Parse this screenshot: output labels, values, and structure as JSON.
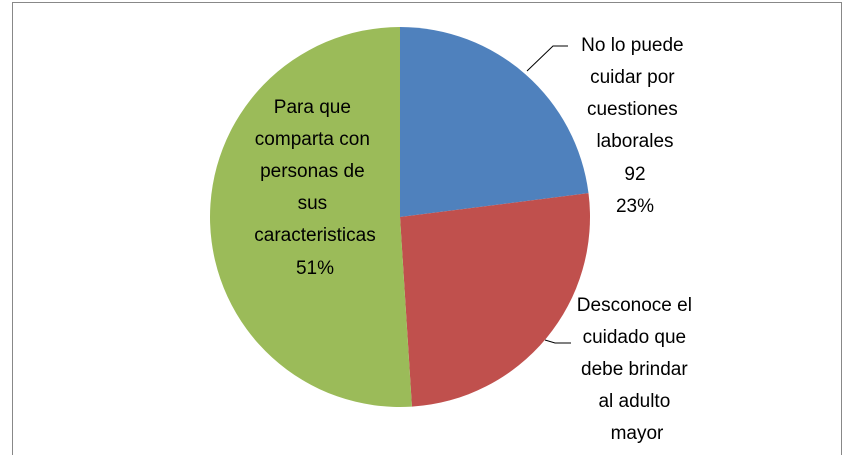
{
  "chart_data": {
    "type": "pie",
    "categories": [
      "No lo puede cuidar por cuestiones laborales",
      "Desconoce el cuidado que debe brindar al adulto mayor",
      "Para que comparta con personas de sus caracteristicas"
    ],
    "values": [
      23,
      26,
      51
    ],
    "counts": [
      92,
      null,
      null
    ],
    "value_labels": [
      "23%",
      null,
      "51%"
    ],
    "colors": [
      "#4f81bd",
      "#c0504d",
      "#9bbb59"
    ]
  }
}
